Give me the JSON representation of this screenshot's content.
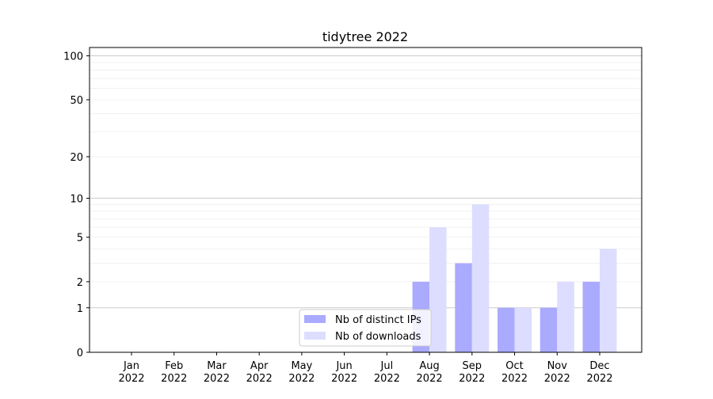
{
  "chart_data": {
    "type": "bar",
    "title": "tidytree 2022",
    "xlabel": "",
    "ylabel": "",
    "y_scale": "log(1+y)",
    "ylim": [
      0,
      114
    ],
    "y_ticks": [
      0,
      1,
      2,
      5,
      10,
      20,
      50,
      100
    ],
    "grid": "horizontal, major and minor",
    "legend_position": "bottom-center",
    "categories": [
      "Jan\n2022",
      "Feb\n2022",
      "Mar\n2022",
      "Apr\n2022",
      "May\n2022",
      "Jun\n2022",
      "Jul\n2022",
      "Aug\n2022",
      "Sep\n2022",
      "Oct\n2022",
      "Nov\n2022",
      "Dec\n2022"
    ],
    "series": [
      {
        "name": "Nb of distinct IPs",
        "color": "#aaaaff",
        "values": [
          0,
          0,
          0,
          0,
          0,
          0,
          0,
          2,
          3,
          1,
          1,
          2
        ]
      },
      {
        "name": "Nb of downloads",
        "color": "#ddddff",
        "values": [
          0,
          0,
          0,
          0,
          0,
          0,
          0,
          6,
          9,
          1,
          2,
          4
        ]
      }
    ]
  }
}
